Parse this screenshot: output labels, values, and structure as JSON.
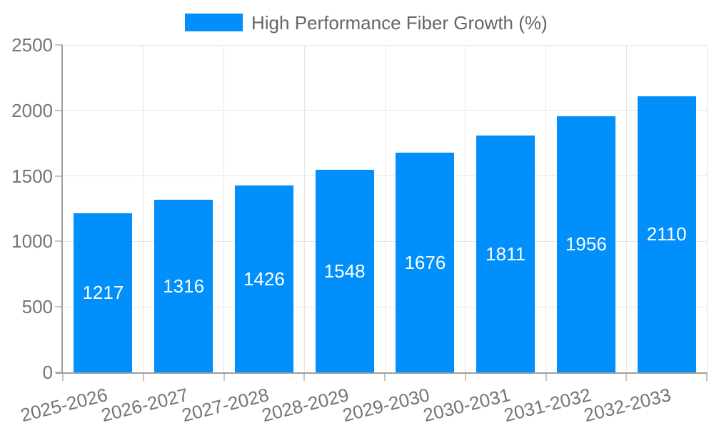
{
  "chart_data": {
    "type": "bar",
    "legend": "High Performance Fiber Growth (%)",
    "legend_position": "top",
    "categories": [
      "2025-2026",
      "2026-2027",
      "2027-2028",
      "2028-2029",
      "2029-2030",
      "2030-2031",
      "2031-2032",
      "2032-2033"
    ],
    "values": [
      1217,
      1316,
      1426,
      1548,
      1676,
      1811,
      1956,
      2110
    ],
    "value_labels_inside_bars": true,
    "xlabel": "",
    "ylabel": "",
    "ylim": [
      0,
      2500
    ],
    "yticks": [
      0,
      500,
      1000,
      1500,
      2000,
      2500
    ],
    "grid": true,
    "colors": {
      "bar": "#008FFB",
      "bar_value_text": "#ffffff",
      "axis_text": "#757575",
      "legend_text": "#666666",
      "gridline": "#e6e6e6",
      "tick": "#c4c4c4",
      "axis_line": "#9e9e9e",
      "background": "#ffffff"
    }
  }
}
